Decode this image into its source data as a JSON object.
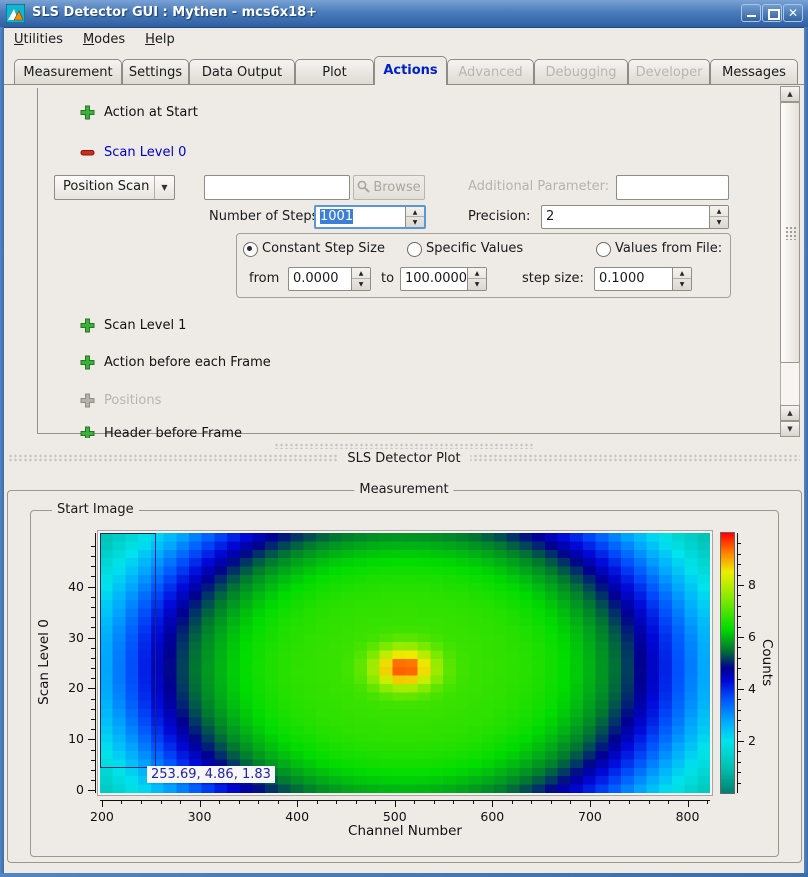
{
  "window": {
    "title": "SLS Detector GUI : Mythen - mcs6x18+"
  },
  "menubar": {
    "items": [
      "Utilities",
      "Modes",
      "Help"
    ]
  },
  "tabs": {
    "labels": [
      "Measurement",
      "Settings",
      "Data Output",
      "Plot",
      "Actions",
      "Advanced",
      "Debugging",
      "Developer",
      "Messages"
    ],
    "active": "Actions",
    "disabled": [
      "Advanced",
      "Debugging",
      "Developer"
    ]
  },
  "actions": {
    "action_at_start": "Action at Start",
    "scan_level_0": "Scan Level 0",
    "scan_mode": "Position Scan",
    "scan_file": "",
    "browse": "Browse",
    "additional_parameter_label": "Additional Parameter:",
    "additional_parameter": "",
    "steps_label": "Number of Steps:",
    "steps": "1001",
    "precision_label": "Precision:",
    "precision": "2",
    "constant_step": "Constant Step Size",
    "specific_values": "Specific Values",
    "values_from_file": "Values from File:",
    "from_label": "from",
    "from": "0.0000",
    "to_label": "to",
    "to": "100.0000",
    "step_size_label": "step size:",
    "step_size": "0.1000",
    "scan_level_1": "Scan Level 1",
    "action_before_frame": "Action before each Frame",
    "positions": "Positions",
    "header_before_frame": "Header before Frame"
  },
  "dock": {
    "plot_title": "SLS Detector Plot"
  },
  "plot": {
    "measurement_title": "Measurement",
    "start_image_title": "Start Image",
    "cursor_readout": "253.69, 4.86, 1.83"
  },
  "chart_data": {
    "type": "heatmap",
    "title": "Start Image",
    "xlabel": "Channel Number",
    "ylabel": "Scan Level 0",
    "colorbar_label": "Counts",
    "x_range": [
      198,
      823
    ],
    "y_range": [
      -0.5,
      50.5
    ],
    "z_range": [
      0,
      10
    ],
    "x_ticks": [
      200,
      300,
      400,
      500,
      600,
      700,
      800
    ],
    "x_minor_step": 20,
    "y_ticks": [
      0,
      10,
      20,
      30,
      40
    ],
    "y_minor_step": 2,
    "z_ticks": [
      2,
      4,
      6,
      8
    ],
    "z_minor_step": 0.4,
    "grid": {
      "cols": 48,
      "rows": 31
    },
    "peak": {
      "channel": 510,
      "scan_level": 24,
      "counts": 9.6
    },
    "profile": {
      "broad_amp": 6.8,
      "sigma_x": 315,
      "sigma_y": 40,
      "broad_shape": 2,
      "narrow_amp": 2.8,
      "narrow_k": 100
    },
    "colormap": [
      [
        0.0,
        "#008272"
      ],
      [
        1.0,
        "#00c2b2"
      ],
      [
        2.0,
        "#00e4ec"
      ],
      [
        2.8,
        "#00a6ff"
      ],
      [
        3.6,
        "#0054ff"
      ],
      [
        4.3,
        "#0008d8"
      ],
      [
        4.8,
        "#000090"
      ],
      [
        5.5,
        "#007830"
      ],
      [
        6.3,
        "#00dc00"
      ],
      [
        7.5,
        "#86ea00"
      ],
      [
        8.5,
        "#ecee00"
      ],
      [
        9.2,
        "#ff8800"
      ],
      [
        9.7,
        "#ff3300"
      ],
      [
        10.0,
        "#ff0000"
      ]
    ],
    "cursor": {
      "x": 253.69,
      "y": 4.86,
      "value": 1.83
    },
    "selection_rect": {
      "x0": 198,
      "y0": 50.5,
      "x1": 253.69,
      "y1": 4.86
    },
    "legend_position": "right-colorbar"
  }
}
